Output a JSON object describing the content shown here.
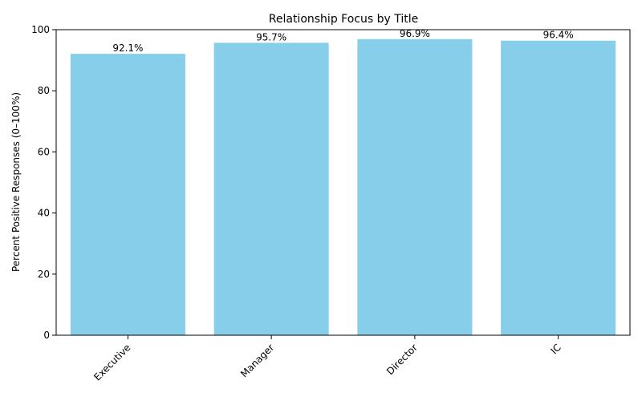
{
  "chart_data": {
    "type": "bar",
    "title": "Relationship Focus by Title",
    "xlabel": "",
    "ylabel": "Percent Positive Responses (0–100%)",
    "categories": [
      "Executive",
      "Manager",
      "Director",
      "IC"
    ],
    "values": [
      92.1,
      95.7,
      96.9,
      96.4
    ],
    "value_labels": [
      "92.1%",
      "95.7%",
      "96.9%",
      "96.4%"
    ],
    "ylim": [
      0,
      100
    ],
    "yticks": [
      0,
      20,
      40,
      60,
      80,
      100
    ],
    "grid": false,
    "bar_color": "#87ceeb"
  }
}
